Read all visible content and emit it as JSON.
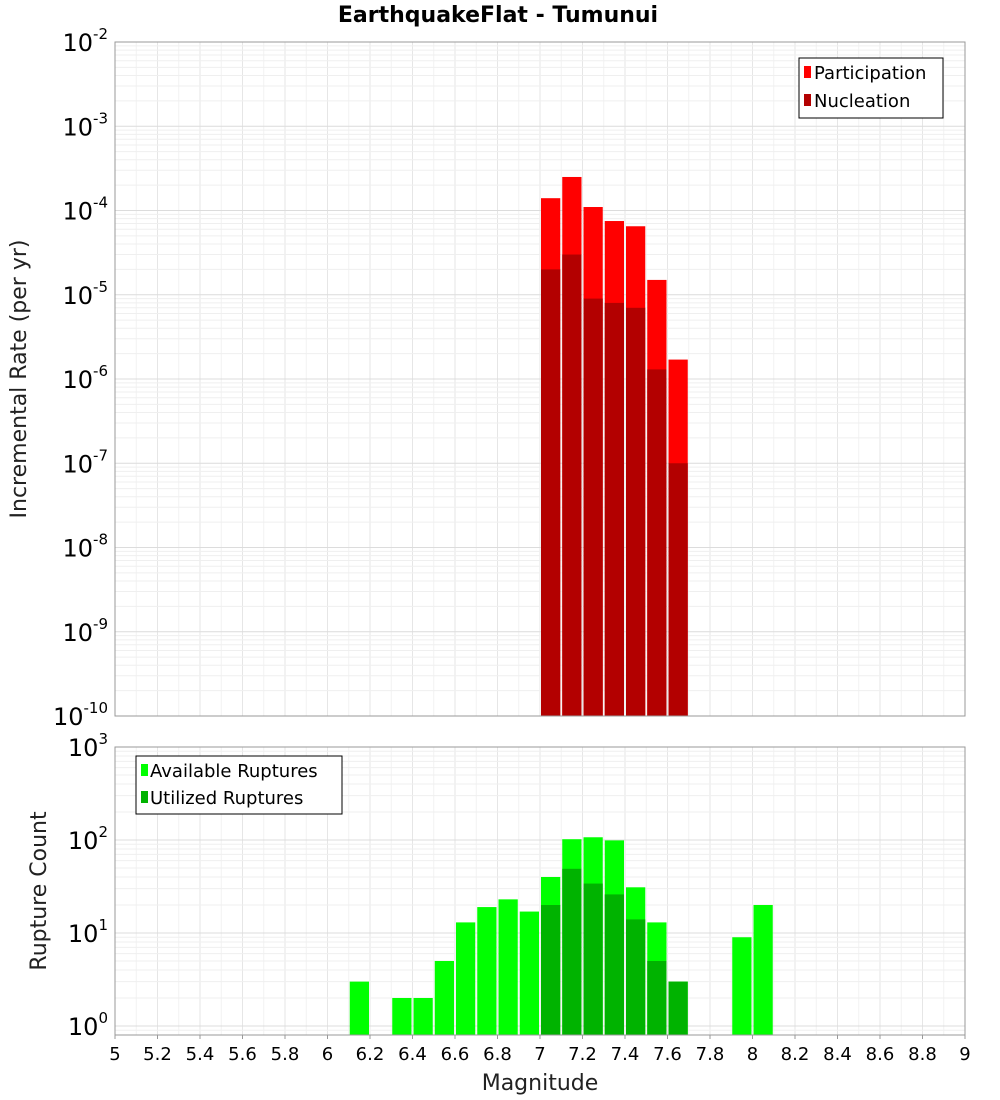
{
  "title": "EarthquakeFlat - Tumunui",
  "chart_data": [
    {
      "type": "bar",
      "panel": "top",
      "ylabel": "Incremental Rate (per yr)",
      "yscale": "log",
      "ylim": [
        1e-10,
        0.01
      ],
      "xlim": [
        5,
        9
      ],
      "bin_width": 0.1,
      "grid": true,
      "legend_position": "top-right",
      "x": [
        7.05,
        7.15,
        7.25,
        7.35,
        7.45,
        7.55,
        7.65
      ],
      "series": [
        {
          "name": "Participation",
          "color": "#ff0000",
          "values": [
            0.00014,
            0.00025,
            0.00011,
            7.5e-05,
            6.5e-05,
            1.5e-05,
            1.7e-06
          ]
        },
        {
          "name": "Nucleation",
          "color": "#b30000",
          "values": [
            2e-05,
            3e-05,
            9e-06,
            8e-06,
            7e-06,
            1.3e-06,
            1e-07
          ]
        }
      ]
    },
    {
      "type": "bar",
      "panel": "bottom",
      "ylabel": "Rupture Count",
      "xlabel": "Magnitude",
      "yscale": "log",
      "ylim": [
        0.8,
        1000
      ],
      "xlim": [
        5,
        9
      ],
      "bin_width": 0.1,
      "grid": true,
      "legend_position": "top-left",
      "x": [
        6.15,
        6.35,
        6.45,
        6.55,
        6.65,
        6.75,
        6.85,
        6.95,
        7.05,
        7.15,
        7.25,
        7.35,
        7.45,
        7.55,
        7.65,
        7.95,
        8.05
      ],
      "series": [
        {
          "name": "Available Ruptures",
          "color": "#00ff00",
          "values": [
            3,
            2,
            2,
            5,
            13,
            19,
            23,
            17,
            40,
            102,
            107,
            99,
            31,
            13,
            3,
            9,
            20
          ]
        },
        {
          "name": "Utilized Ruptures",
          "color": "#00b300",
          "values": [
            null,
            null,
            null,
            null,
            null,
            null,
            null,
            null,
            20,
            49,
            34,
            26,
            14,
            5,
            3,
            null,
            null
          ]
        }
      ]
    }
  ],
  "x_ticks": [
    "5",
    "5.2",
    "5.4",
    "5.6",
    "5.8",
    "6",
    "6.2",
    "6.4",
    "6.6",
    "6.8",
    "7",
    "7.2",
    "7.4",
    "7.6",
    "7.8",
    "8",
    "8.2",
    "8.4",
    "8.6",
    "8.8",
    "9"
  ],
  "top_y_ticks": [
    {
      "base": "10",
      "exp": "-2"
    },
    {
      "base": "10",
      "exp": "-3"
    },
    {
      "base": "10",
      "exp": "-4"
    },
    {
      "base": "10",
      "exp": "-5"
    },
    {
      "base": "10",
      "exp": "-6"
    },
    {
      "base": "10",
      "exp": "-7"
    },
    {
      "base": "10",
      "exp": "-8"
    },
    {
      "base": "10",
      "exp": "-9"
    },
    {
      "base": "10",
      "exp": "-10"
    }
  ],
  "bottom_y_ticks": [
    {
      "base": "10",
      "exp": "3"
    },
    {
      "base": "10",
      "exp": "2"
    },
    {
      "base": "10",
      "exp": "1"
    },
    {
      "base": "10",
      "exp": "0"
    }
  ]
}
